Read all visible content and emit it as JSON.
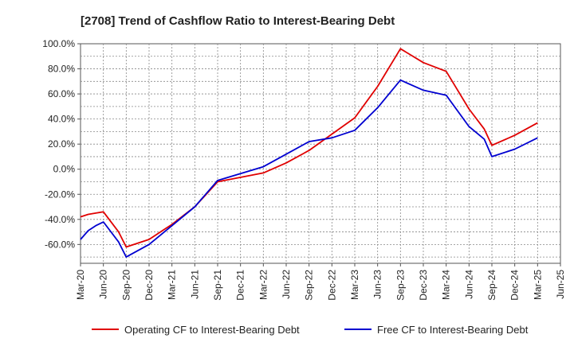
{
  "chart_data": {
    "type": "line",
    "title": "[2708]  Trend of Cashflow Ratio to Interest-Bearing Debt",
    "xlabel": "",
    "ylabel": "",
    "ylim": [
      -75,
      100
    ],
    "y_ticks": [
      100,
      80,
      60,
      40,
      20,
      0,
      -20,
      -40,
      -60
    ],
    "y_tick_labels": [
      "100.0%",
      "80.0%",
      "60.0%",
      "40.0%",
      "20.0%",
      "0.0%",
      "-20.0%",
      "-40.0%",
      "-60.0%"
    ],
    "x_ticks": [
      "Mar-20",
      "Jun-20",
      "Sep-20",
      "Dec-20",
      "Mar-21",
      "Jun-21",
      "Sep-21",
      "Dec-21",
      "Mar-22",
      "Jun-22",
      "Sep-22",
      "Dec-22",
      "Mar-23",
      "Jun-23",
      "Sep-23",
      "Dec-23",
      "Mar-24",
      "Jun-24",
      "Sep-24",
      "Dec-24",
      "Mar-25",
      "Jun-25"
    ],
    "grid": true,
    "legend_position": "bottom",
    "series": [
      {
        "name": "Operating CF to Interest-Bearing Debt",
        "color": "#e00000",
        "points": [
          [
            "Mar-20",
            -38
          ],
          [
            "Apr-20",
            -36
          ],
          [
            "May-20",
            -35
          ],
          [
            "Jun-20",
            -34
          ],
          [
            "Aug-20",
            -50
          ],
          [
            "Sep-20",
            -62
          ],
          [
            "Dec-20",
            -56
          ],
          [
            "Feb-21",
            -48
          ],
          [
            "Mar-21",
            -44
          ],
          [
            "Jun-21",
            -30
          ],
          [
            "Sep-21",
            -10
          ],
          [
            "Mar-22",
            -3
          ],
          [
            "Jun-22",
            5
          ],
          [
            "Sep-22",
            15
          ],
          [
            "Dec-22",
            28
          ],
          [
            "Mar-23",
            41
          ],
          [
            "Jun-23",
            66
          ],
          [
            "Sep-23",
            96
          ],
          [
            "Dec-23",
            85
          ],
          [
            "Mar-24",
            78
          ],
          [
            "Jun-24",
            48
          ],
          [
            "Aug-24",
            32
          ],
          [
            "Sep-24",
            19
          ],
          [
            "Dec-24",
            27
          ],
          [
            "Mar-25",
            37
          ]
        ]
      },
      {
        "name": "Free CF to Interest-Bearing Debt",
        "color": "#0000d0",
        "points": [
          [
            "Mar-20",
            -56
          ],
          [
            "Apr-20",
            -49
          ],
          [
            "May-20",
            -45
          ],
          [
            "Jun-20",
            -42
          ],
          [
            "Aug-20",
            -58
          ],
          [
            "Sep-20",
            -70
          ],
          [
            "Dec-20",
            -60
          ],
          [
            "Mar-21",
            -45
          ],
          [
            "Jun-21",
            -30
          ],
          [
            "Sep-21",
            -9
          ],
          [
            "Mar-22",
            2
          ],
          [
            "Jun-22",
            12
          ],
          [
            "Sep-22",
            22
          ],
          [
            "Dec-22",
            25
          ],
          [
            "Mar-23",
            31
          ],
          [
            "Jun-23",
            49
          ],
          [
            "Sep-23",
            71
          ],
          [
            "Dec-23",
            63
          ],
          [
            "Mar-24",
            59
          ],
          [
            "Jun-24",
            34
          ],
          [
            "Aug-24",
            24
          ],
          [
            "Sep-24",
            10
          ],
          [
            "Dec-24",
            16
          ],
          [
            "Mar-25",
            25
          ]
        ]
      }
    ]
  }
}
